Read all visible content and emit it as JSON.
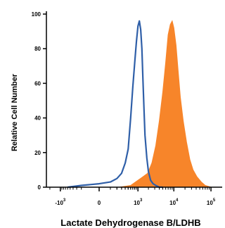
{
  "chart_data": {
    "type": "area",
    "title": "",
    "xlabel": "Lactate Dehydrogenase B/LDHB",
    "ylabel": "Relative Cell Number",
    "x_scale": "biexponential",
    "ylim": [
      0,
      100
    ],
    "yticks": [
      "0",
      "20",
      "40",
      "60",
      "80",
      "100"
    ],
    "xticks": [
      {
        "base": "-10",
        "exp": "3",
        "value": -1000
      },
      {
        "base": "0",
        "exp": "",
        "value": 0
      },
      {
        "base": "10",
        "exp": "3",
        "value": 1000
      },
      {
        "base": "10",
        "exp": "4",
        "value": 10000
      },
      {
        "base": "10",
        "exp": "5",
        "value": 100000
      }
    ],
    "grid": false,
    "legend": "none",
    "series": [
      {
        "style": "filled",
        "color": "#f7852a",
        "x": [
          250,
          600,
          1000,
          1400,
          1900,
          2500,
          3200,
          4000,
          5000,
          6000,
          7000,
          8000,
          9000,
          10000,
          11500,
          13000,
          15000,
          18000,
          22000,
          27000,
          33000,
          42000,
          55000,
          70000,
          100000
        ],
        "y": [
          0,
          1,
          4,
          6,
          8,
          14,
          24,
          38,
          55,
          72,
          88,
          94,
          96,
          92,
          82,
          68,
          52,
          38,
          26,
          16,
          10,
          6,
          3,
          1,
          0
        ]
      },
      {
        "style": "outline",
        "color": "#2f5fa8",
        "x": [
          -600,
          -200,
          0,
          100,
          200,
          300,
          400,
          500,
          600,
          700,
          800,
          900,
          1000,
          1100,
          1200,
          1300,
          1400,
          1500,
          1600,
          1800,
          2000,
          2300,
          2700,
          3200,
          4000,
          5000
        ],
        "y": [
          0,
          1,
          2,
          3,
          5,
          8,
          14,
          22,
          40,
          58,
          72,
          84,
          93,
          96,
          91,
          80,
          62,
          45,
          30,
          17,
          9,
          4,
          2,
          1,
          0,
          0
        ]
      }
    ]
  }
}
